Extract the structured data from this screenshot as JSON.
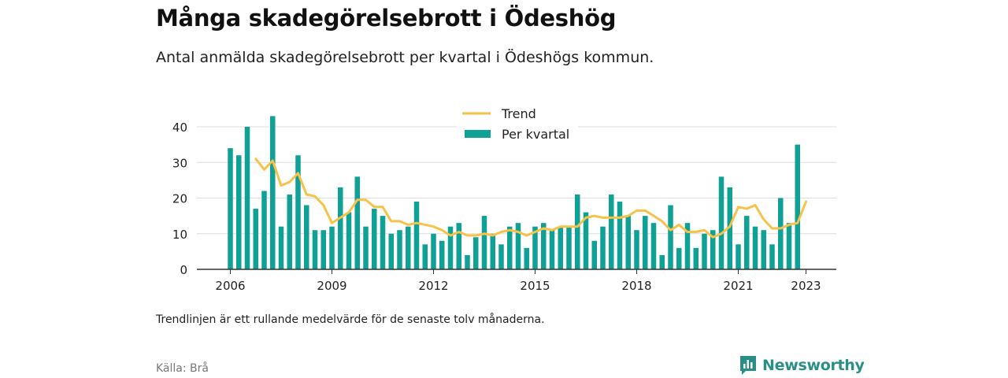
{
  "title": "Många skadegörelsebrott i Ödeshög",
  "subtitle": "Antal anmälda skadegörelsebrott per kvartal i Ödeshögs kommun.",
  "footnote": "Trendlinjen är ett rullande medelvärde för de senaste tolv månaderna.",
  "source": "Källa: Brå",
  "brand": {
    "name": "Newsworthy",
    "icon": "newsworthy-logo-icon",
    "color": "#2a8f86"
  },
  "colors": {
    "bars": "#0fa195",
    "trend": "#f6c24a",
    "grid": "#dddddd",
    "axis": "#333333"
  },
  "chart_data": {
    "type": "bar",
    "title": "Många skadegörelsebrott i Ödeshög",
    "subtitle": "Antal anmälda skadegörelsebrott per kvartal i Ödeshögs kommun.",
    "xlabel": "",
    "ylabel": "",
    "ylim": [
      0,
      40
    ],
    "yticks": [
      0,
      10,
      20,
      30,
      40
    ],
    "xticks": [
      "2006",
      "2009",
      "2012",
      "2015",
      "2018",
      "2021",
      "2023"
    ],
    "grid": true,
    "legend_position": "top",
    "quarters": [
      "2006-Q1",
      "2006-Q2",
      "2006-Q3",
      "2006-Q4",
      "2007-Q1",
      "2007-Q2",
      "2007-Q3",
      "2007-Q4",
      "2008-Q1",
      "2008-Q2",
      "2008-Q3",
      "2008-Q4",
      "2009-Q1",
      "2009-Q2",
      "2009-Q3",
      "2009-Q4",
      "2010-Q1",
      "2010-Q2",
      "2010-Q3",
      "2010-Q4",
      "2011-Q1",
      "2011-Q2",
      "2011-Q3",
      "2011-Q4",
      "2012-Q1",
      "2012-Q2",
      "2012-Q3",
      "2012-Q4",
      "2013-Q1",
      "2013-Q2",
      "2013-Q3",
      "2013-Q4",
      "2014-Q1",
      "2014-Q2",
      "2014-Q3",
      "2014-Q4",
      "2015-Q1",
      "2015-Q2",
      "2015-Q3",
      "2015-Q4",
      "2016-Q1",
      "2016-Q2",
      "2016-Q3",
      "2016-Q4",
      "2017-Q1",
      "2017-Q2",
      "2017-Q3",
      "2017-Q4",
      "2018-Q1",
      "2018-Q2",
      "2018-Q3",
      "2018-Q4",
      "2019-Q1",
      "2019-Q2",
      "2019-Q3",
      "2019-Q4",
      "2020-Q1",
      "2020-Q2",
      "2020-Q3",
      "2020-Q4",
      "2021-Q1",
      "2021-Q2",
      "2021-Q3",
      "2021-Q4",
      "2022-Q1",
      "2022-Q2",
      "2022-Q3",
      "2022-Q4",
      "2023-Q1"
    ],
    "series": [
      {
        "name": "Per kvartal",
        "type": "bar",
        "values": [
          34,
          32,
          40,
          17,
          22,
          43,
          12,
          21,
          32,
          18,
          11,
          11,
          12,
          23,
          16,
          26,
          12,
          17,
          15,
          10,
          11,
          12,
          19,
          7,
          10,
          8,
          12,
          13,
          4,
          9,
          15,
          10,
          7,
          12,
          13,
          6,
          12,
          13,
          11,
          12,
          12,
          21,
          16,
          8,
          12,
          21,
          19,
          15,
          11,
          15,
          13,
          4,
          18,
          6,
          13,
          6,
          10,
          11,
          26,
          23,
          7,
          15,
          12,
          11,
          7,
          20,
          13,
          35,
          null
        ]
      },
      {
        "name": "Trend",
        "type": "line",
        "values": [
          null,
          null,
          null,
          31,
          28,
          30.5,
          23.5,
          24.5,
          27,
          21,
          20.5,
          18,
          13,
          14.5,
          16,
          19.5,
          19.5,
          17.5,
          17.5,
          13.5,
          13.5,
          12.5,
          13,
          12.5,
          12,
          11,
          9.5,
          10.5,
          9.5,
          9.5,
          10,
          9.5,
          10.5,
          11,
          10.5,
          9.5,
          10.5,
          11.5,
          11,
          12,
          12,
          12,
          14.5,
          15,
          14.5,
          14.5,
          14.5,
          15,
          16.5,
          16.5,
          15,
          13.5,
          11,
          12.5,
          10.5,
          10.5,
          11,
          9,
          10,
          12,
          17.5,
          17,
          18,
          14,
          11.5,
          11.5,
          12.5,
          13,
          19
        ]
      }
    ]
  }
}
